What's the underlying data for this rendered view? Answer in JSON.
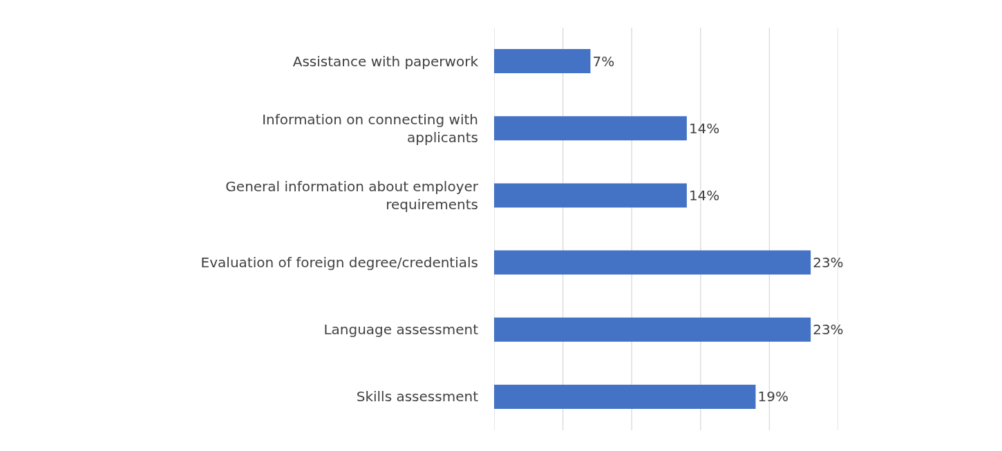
{
  "chart_data": {
    "type": "bar",
    "orientation": "horizontal",
    "categories": [
      "Assistance with paperwork",
      "Information on connecting with\napplicants",
      "General information about employer\nrequirements",
      "Evaluation of foreign degree/credentials",
      "Language assessment",
      "Skills assessment"
    ],
    "values": [
      7,
      14,
      14,
      23,
      23,
      19
    ],
    "value_labels": [
      "7%",
      "14%",
      "14%",
      "23%",
      "23%",
      "19%"
    ],
    "color": "#4472c4",
    "xlim": [
      0,
      25
    ],
    "xticks": [
      {
        "value": 0,
        "label": null
      },
      {
        "value": 5,
        "label": null
      },
      {
        "value": 10,
        "label": null
      },
      {
        "value": 15,
        "label": null
      },
      {
        "value": 20,
        "label": null
      },
      {
        "value": 25,
        "label": null
      }
    ],
    "grid": "x",
    "tick_labels": "y"
  }
}
